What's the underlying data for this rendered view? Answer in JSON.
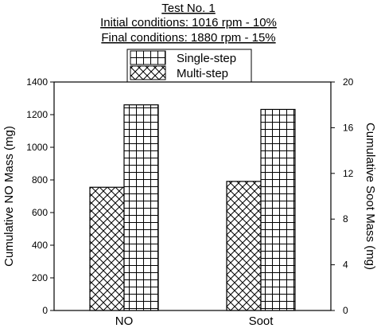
{
  "chart_data": {
    "type": "bar",
    "title_lines": [
      "Test No. 1",
      "Initial conditions: 1016 rpm - 10%",
      "Final conditions: 1880 rpm - 15%"
    ],
    "categories": [
      "NO",
      "Soot"
    ],
    "series": [
      {
        "name": "Multi-step",
        "pattern": "crosshatch",
        "values": [
          755,
          11.3
        ]
      },
      {
        "name": "Single-step",
        "pattern": "grid",
        "values": [
          1260,
          17.6
        ]
      }
    ],
    "category_axis": [
      "left",
      "right"
    ],
    "y_left": {
      "label": "Cumulative NO Mass (mg)",
      "ylim": [
        0,
        1400
      ],
      "ticks": [
        0,
        200,
        400,
        600,
        800,
        1000,
        1200,
        1400
      ]
    },
    "y_right": {
      "label": "Cumulative Soot Mass (mg)",
      "ylim": [
        0,
        20
      ],
      "ticks": [
        0,
        4,
        8,
        12,
        16,
        20
      ]
    },
    "legend": {
      "placement": "top-center",
      "entries": [
        "Single-step",
        "Multi-step"
      ]
    },
    "grid": false
  }
}
